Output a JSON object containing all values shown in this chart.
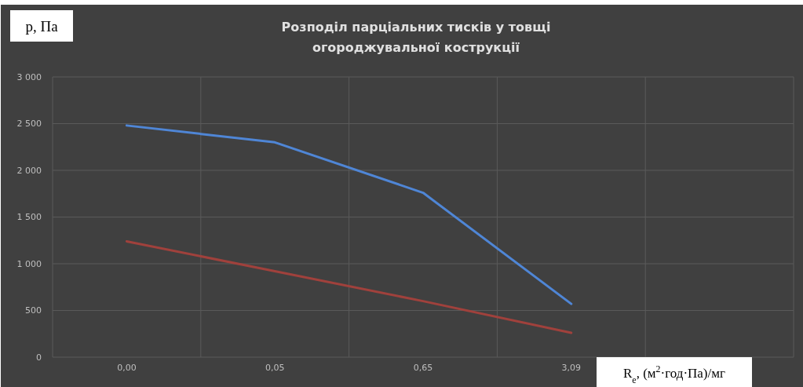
{
  "chart_data": {
    "type": "line",
    "title": "Розподіл парціальних тисків у товщі\nогороджувальної кострукції",
    "ylabel": "p, Па",
    "xlabel": "R$_{e}$, (м$^{2}$·год·Па)/мг",
    "categories": [
      "0,00",
      "0,05",
      "0,65",
      "3,09",
      null
    ],
    "series": [
      {
        "color": "#4f86d6",
        "values": [
          2480,
          2300,
          1760,
          570,
          null
        ]
      },
      {
        "color": "#a0413c",
        "values": [
          1240,
          920,
          600,
          260,
          null
        ]
      }
    ],
    "ylim": [
      0,
      3000
    ],
    "yticks": [
      {
        "value": 0,
        "label": "0"
      },
      {
        "value": 500,
        "label": "500"
      },
      {
        "value": 1000,
        "label": "1 000"
      },
      {
        "value": 1500,
        "label": "1 500"
      },
      {
        "value": 2000,
        "label": "2 000"
      },
      {
        "value": 2500,
        "label": "2 500"
      },
      {
        "value": 3000,
        "label": "3 000"
      }
    ],
    "grid": true
  }
}
